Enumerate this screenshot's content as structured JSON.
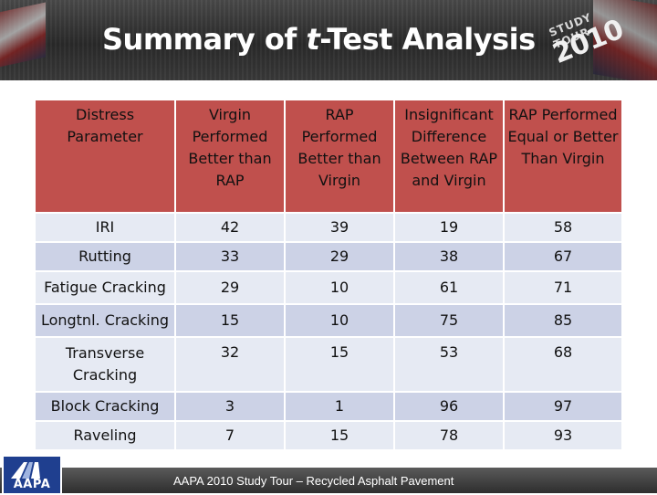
{
  "header": {
    "title_before": "Summary of ",
    "title_italic": "t",
    "title_after": "-Test Analysis",
    "tour_logo": {
      "line1": "STUDY TOUR",
      "line2": "2010"
    }
  },
  "table": {
    "headers": [
      "Distress Parameter",
      "Virgin Performed Better than RAP",
      "RAP Performed Better than Virgin",
      "Insignificant Difference Between RAP and Virgin",
      "RAP Performed Equal or Better Than Virgin"
    ],
    "rows": [
      {
        "param": "IRI",
        "values": [
          "42",
          "39",
          "19",
          "58"
        ]
      },
      {
        "param": "Rutting",
        "values": [
          "33",
          "29",
          "38",
          "67"
        ]
      },
      {
        "param": "Fatigue Cracking",
        "values": [
          "29",
          "10",
          "61",
          "71"
        ]
      },
      {
        "param": "Longtnl. Cracking",
        "values": [
          "15",
          "10",
          "75",
          "85"
        ]
      },
      {
        "param": "Transverse Cracking",
        "values": [
          "32",
          "15",
          "53",
          "68"
        ]
      },
      {
        "param": "Block Cracking",
        "values": [
          "3",
          "1",
          "96",
          "97"
        ]
      },
      {
        "param": "Raveling",
        "values": [
          "7",
          "15",
          "78",
          "93"
        ]
      }
    ]
  },
  "footer": {
    "logo_text": "AAPA",
    "caption": "AAPA 2010 Study Tour – Recycled Asphalt Pavement"
  },
  "colors": {
    "header_fill": "#c0504d",
    "row_light": "#e6eaf3",
    "row_dark": "#ccd2e6",
    "logo_blue": "#1f3f8f"
  }
}
